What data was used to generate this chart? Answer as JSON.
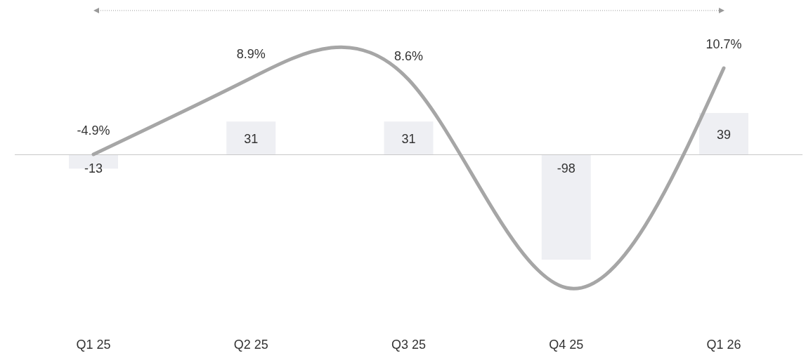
{
  "chart_data": {
    "type": "bar",
    "categories": [
      "Q1 25",
      "Q2 25",
      "Q3 25",
      "Q4 25",
      "Q1 26"
    ],
    "series": [
      {
        "color": "#eeeff3",
        "values": [
          -13,
          31,
          31,
          -98,
          39
        ],
        "value_labels": [
          "-13",
          "31",
          "31",
          "-98",
          "39"
        ]
      },
      {
        "type": "line",
        "axis": "y2",
        "color": "#a6a6a6",
        "values": [
          -4.9,
          8.9,
          8.6,
          -29,
          10.7
        ],
        "value_labels": [
          "-4.9%",
          "8.9%",
          "8.6%",
          null,
          "10.7%"
        ]
      }
    ],
    "tick_labels": "x"
  }
}
